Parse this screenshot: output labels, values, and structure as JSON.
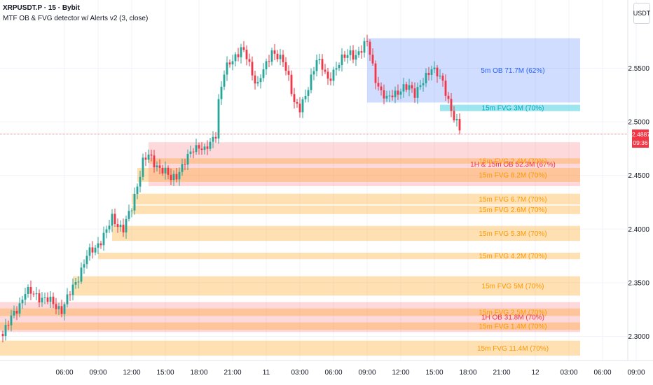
{
  "header": {
    "title": "XRPUSDT.P · 15 · Bybit",
    "indicator": "MTF OB & FVG detector w/ Alerts v2 (3, close)",
    "currency": "USDT"
  },
  "price_tag": {
    "price": "2.4887",
    "countdown": "09:36",
    "value": 2.4887,
    "color": "#f23645"
  },
  "colors": {
    "up": "#26a69a",
    "down": "#f23645",
    "ob_bull": "#2962ff",
    "fvg": "#ff9800",
    "ob_bear": "#f7525f",
    "fvg_cyan": "#00bcd4"
  },
  "chart_data": {
    "type": "candlestick",
    "title": "",
    "ylim": [
      2.285,
      2.59
    ],
    "y_ticks": [
      2.3,
      2.35,
      2.4,
      2.45,
      2.5,
      2.55
    ],
    "y_tick_labels": [
      "2.3000",
      "2.3500",
      "2.4000",
      "2.4500",
      "2.5000",
      "2.5500"
    ],
    "x_range_bars": [
      -23,
      201
    ],
    "x_ticks": [
      {
        "bar": 0,
        "label": "06:00"
      },
      {
        "bar": 12,
        "label": "09:00"
      },
      {
        "bar": 24,
        "label": "12:00"
      },
      {
        "bar": 36,
        "label": "15:00"
      },
      {
        "bar": 48,
        "label": "18:00"
      },
      {
        "bar": 60,
        "label": "21:00"
      },
      {
        "bar": 72,
        "label": "11"
      },
      {
        "bar": 84,
        "label": "03:00"
      },
      {
        "bar": 96,
        "label": "06:00"
      },
      {
        "bar": 108,
        "label": "09:00"
      },
      {
        "bar": 120,
        "label": "12:00"
      },
      {
        "bar": 132,
        "label": "15:00"
      },
      {
        "bar": 144,
        "label": "18:00"
      },
      {
        "bar": 156,
        "label": "21:00"
      },
      {
        "bar": 168,
        "label": "12"
      },
      {
        "bar": 180,
        "label": "03:00"
      },
      {
        "bar": 192,
        "label": "06:00"
      },
      {
        "bar": 204,
        "label": "09:00"
      }
    ],
    "candle_anchors": [
      [
        -22,
        2.303
      ],
      [
        -16,
        2.33
      ],
      [
        -14,
        2.342
      ],
      [
        -10,
        2.338
      ],
      [
        -6,
        2.334
      ],
      [
        -4,
        2.33
      ],
      [
        -1,
        2.325
      ],
      [
        2,
        2.34
      ],
      [
        5,
        2.356
      ],
      [
        8,
        2.375
      ],
      [
        11,
        2.383
      ],
      [
        13,
        2.39
      ],
      [
        15,
        2.398
      ],
      [
        17,
        2.41
      ],
      [
        19,
        2.405
      ],
      [
        21,
        2.4
      ],
      [
        24,
        2.42
      ],
      [
        26,
        2.442
      ],
      [
        28,
        2.463
      ],
      [
        30,
        2.468
      ],
      [
        32,
        2.462
      ],
      [
        35,
        2.455
      ],
      [
        38,
        2.447
      ],
      [
        40,
        2.451
      ],
      [
        42,
        2.458
      ],
      [
        44,
        2.466
      ],
      [
        46,
        2.476
      ],
      [
        48,
        2.478
      ],
      [
        50,
        2.472
      ],
      [
        52,
        2.48
      ],
      [
        54,
        2.49
      ],
      [
        55,
        2.52
      ],
      [
        57,
        2.545
      ],
      [
        59,
        2.555
      ],
      [
        61,
        2.562
      ],
      [
        63,
        2.568
      ],
      [
        65,
        2.56
      ],
      [
        67,
        2.545
      ],
      [
        69,
        2.535
      ],
      [
        70,
        2.543
      ],
      [
        72,
        2.552
      ],
      [
        74,
        2.566
      ],
      [
        76,
        2.563
      ],
      [
        78,
        2.555
      ],
      [
        80,
        2.54
      ],
      [
        82,
        2.52
      ],
      [
        84,
        2.512
      ],
      [
        86,
        2.522
      ],
      [
        88,
        2.542
      ],
      [
        90,
        2.56
      ],
      [
        92,
        2.55
      ],
      [
        94,
        2.538
      ],
      [
        96,
        2.548
      ],
      [
        98,
        2.555
      ],
      [
        100,
        2.56
      ],
      [
        102,
        2.565
      ],
      [
        104,
        2.562
      ],
      [
        106,
        2.566
      ],
      [
        108,
        2.575
      ],
      [
        109,
        2.566
      ],
      [
        111,
        2.54
      ],
      [
        113,
        2.525
      ],
      [
        115,
        2.522
      ],
      [
        117,
        2.528
      ],
      [
        119,
        2.526
      ],
      [
        121,
        2.53
      ],
      [
        123,
        2.535
      ],
      [
        125,
        2.527
      ],
      [
        127,
        2.532
      ],
      [
        129,
        2.542
      ],
      [
        131,
        2.552
      ],
      [
        133,
        2.545
      ],
      [
        135,
        2.535
      ],
      [
        137,
        2.52
      ],
      [
        139,
        2.505
      ],
      [
        141,
        2.492
      ]
    ],
    "zones": [
      {
        "type": "ob-bull",
        "label": "5m OB 71.7M (62%)",
        "top": 2.578,
        "bottom": 2.518,
        "x1": 108,
        "x2": 184,
        "color": "#2962ff",
        "opacity": 0.22,
        "label_color": "#2962ff"
      },
      {
        "type": "fvg-cyan",
        "label": "15m FVG 3M (70%)",
        "top": 2.516,
        "bottom": 2.51,
        "x1": 134,
        "x2": 184,
        "color": "#00bcd4",
        "opacity": 0.38,
        "label_color": "#00acc1"
      },
      {
        "type": "ob-bear",
        "label": "1H & 15m OB 52.3M (67%)",
        "top": 2.481,
        "bottom": 2.44,
        "x1": 30,
        "x2": 184,
        "color": "#f7525f",
        "opacity": 0.22,
        "label_color": "#f23645"
      },
      {
        "type": "fvg",
        "label": "15m FVG 2.4M (70%)",
        "top": 2.466,
        "bottom": 2.461,
        "x1": 30,
        "x2": 184,
        "color": "#ff9800",
        "opacity": 0.3,
        "label_color": "#ff9800"
      },
      {
        "type": "fvg",
        "label": "15m FVG 8.2M (70%)",
        "top": 2.457,
        "bottom": 2.444,
        "x1": 26,
        "x2": 184,
        "color": "#ff9800",
        "opacity": 0.3,
        "label_color": "#ff9800"
      },
      {
        "type": "fvg",
        "label": "15m FVG 6.7M (70%)",
        "top": 2.433,
        "bottom": 2.423,
        "x1": 24,
        "x2": 184,
        "color": "#ff9800",
        "opacity": 0.3,
        "label_color": "#ff9800"
      },
      {
        "type": "fvg",
        "label": "15m FVG 2.6M (70%)",
        "top": 2.422,
        "bottom": 2.414,
        "x1": 24,
        "x2": 184,
        "color": "#ff9800",
        "opacity": 0.3,
        "label_color": "#ff9800"
      },
      {
        "type": "fvg",
        "label": "15m FVG 5.3M (70%)",
        "top": 2.403,
        "bottom": 2.389,
        "x1": 17,
        "x2": 184,
        "color": "#ff9800",
        "opacity": 0.3,
        "label_color": "#ff9800"
      },
      {
        "type": "fvg",
        "label": "15m FVG 4.2M (70%)",
        "top": 2.378,
        "bottom": 2.372,
        "x1": 12,
        "x2": 184,
        "color": "#ff9800",
        "opacity": 0.3,
        "label_color": "#ff9800"
      },
      {
        "type": "fvg",
        "label": "15m FVG 5M (70%)",
        "top": 2.356,
        "bottom": 2.338,
        "x1": 3,
        "x2": 184,
        "color": "#ff9800",
        "opacity": 0.3,
        "label_color": "#ff9800"
      },
      {
        "type": "ob-bear",
        "label": "1H OB 31.8M (70%)",
        "top": 2.332,
        "bottom": 2.304,
        "x1": -23,
        "x2": 184,
        "color": "#f7525f",
        "opacity": 0.22,
        "label_color": "#f23645"
      },
      {
        "type": "fvg",
        "label": "15m FVG 2.5M (70%)",
        "top": 2.326,
        "bottom": 2.319,
        "x1": -23,
        "x2": 184,
        "color": "#ff9800",
        "opacity": 0.3,
        "label_color": "#ff9800"
      },
      {
        "type": "fvg",
        "label": "15m FVG 1.4M (70%)",
        "top": 2.313,
        "bottom": 2.306,
        "x1": -23,
        "x2": 184,
        "color": "#ff9800",
        "opacity": 0.3,
        "label_color": "#ff9800"
      },
      {
        "type": "fvg",
        "label": "15m FVG 11.4M (70%)",
        "top": 2.296,
        "bottom": 2.282,
        "x1": -23,
        "x2": 184,
        "color": "#ff9800",
        "opacity": 0.3,
        "label_color": "#ff9800"
      }
    ],
    "current_price": 2.4887,
    "grid": true
  }
}
